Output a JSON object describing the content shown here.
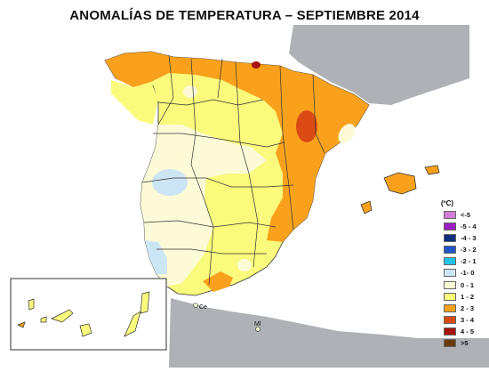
{
  "title": "ANOMALÍAS DE TEMPERATURA – SEPTIEMBRE 2014",
  "legend": {
    "unit": "(ºC)",
    "items": [
      {
        "label": "<-5",
        "color": "#d27bd8"
      },
      {
        "label": "-5 - 4",
        "color": "#9b1fc2"
      },
      {
        "label": "-4 - 3",
        "color": "#0f2f7c"
      },
      {
        "label": "-3 - 2",
        "color": "#2156c7"
      },
      {
        "label": "-2 - 1",
        "color": "#25c2e8"
      },
      {
        "label": "-1- 0",
        "color": "#cde6f5"
      },
      {
        "label": "0 - 1",
        "color": "#fdfbd7"
      },
      {
        "label": "1 - 2",
        "color": "#fafa7c"
      },
      {
        "label": "2 - 3",
        "color": "#f9a11c"
      },
      {
        "label": "3 - 4",
        "color": "#d94b13"
      },
      {
        "label": "4 - 5",
        "color": "#a8150e"
      },
      {
        "label": ">5",
        "color": "#6b3a0b"
      }
    ]
  },
  "places": {
    "ceuta": "Ce",
    "melilla": "Ml"
  },
  "colors": {
    "land_other": "#aeb1b5",
    "sea": "#ffffff",
    "border": "#333333"
  }
}
